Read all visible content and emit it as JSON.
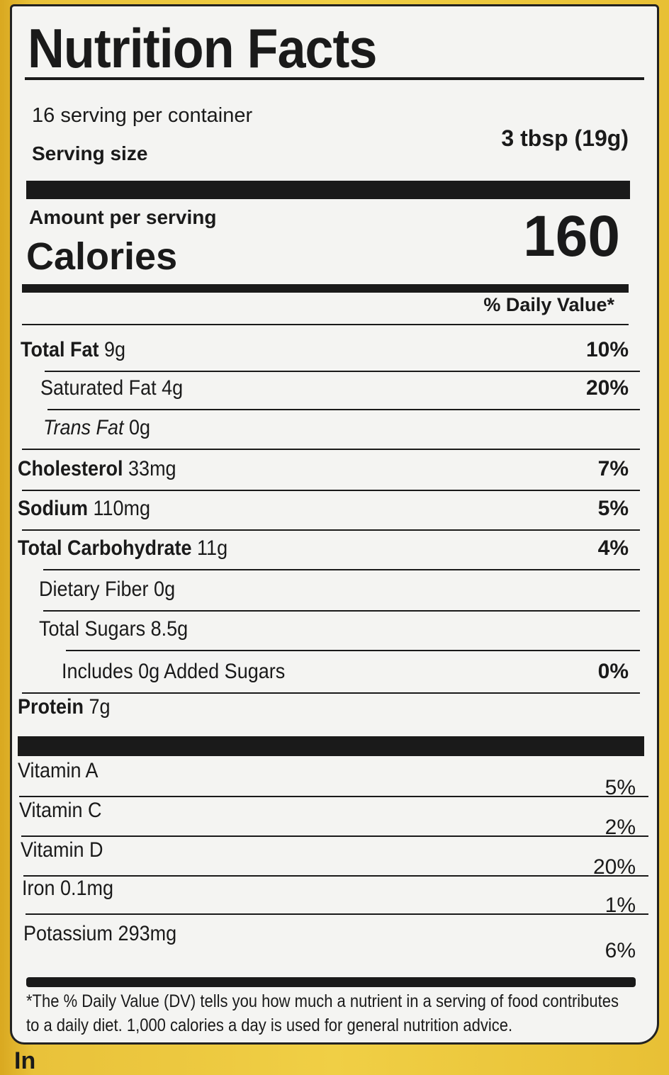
{
  "title": "Nutrition Facts",
  "servings_per_container": "16 serving per container",
  "serving_size_label": "Serving size",
  "serving_size_value": "3 tbsp (19g)",
  "amount_per_serving": "Amount per serving",
  "calories_label": "Calories",
  "calories_value": "160",
  "daily_value_header": "% Daily Value*",
  "nutrients": [
    {
      "name": "Total Fat",
      "amount": "9g",
      "dv": "10%"
    },
    {
      "name": "Saturated Fat",
      "amount": "4g",
      "dv": "20%"
    },
    {
      "name": "Trans Fat",
      "amount": "0g",
      "dv": ""
    },
    {
      "name": "Cholesterol",
      "amount": "33mg",
      "dv": "7%"
    },
    {
      "name": "Sodium",
      "amount": "110mg",
      "dv": "5%"
    },
    {
      "name": "Total Carbohydrate",
      "amount": "11g",
      "dv": "4%"
    },
    {
      "name": "Dietary Fiber",
      "amount": "0g",
      "dv": ""
    },
    {
      "name": "Total Sugars",
      "amount": "8.5g",
      "dv": ""
    },
    {
      "name": "Includes 0g Added Sugars",
      "amount": "",
      "dv": "0%"
    },
    {
      "name": "Protein",
      "amount": "7g",
      "dv": ""
    }
  ],
  "vitamins": [
    {
      "name": "Vitamin A",
      "dv": "5%"
    },
    {
      "name": "Vitamin C",
      "dv": "2%"
    },
    {
      "name": "Vitamin D",
      "dv": "20%"
    },
    {
      "name": "Iron 0.1mg",
      "dv": "1%"
    },
    {
      "name": "Potassium 293mg",
      "dv": "6%"
    }
  ],
  "footnote_line1": "*The % Daily Value (DV) tells you how much a nutrient in a serving of food contributes",
  "footnote_line2": "to a daily diet. 1,000 calories a day is used for general nutrition advice.",
  "ingredients_fragment": "In",
  "colors": {
    "background": "#e9c23a",
    "label": "#f4f4f2",
    "ink": "#1a1a1a"
  }
}
